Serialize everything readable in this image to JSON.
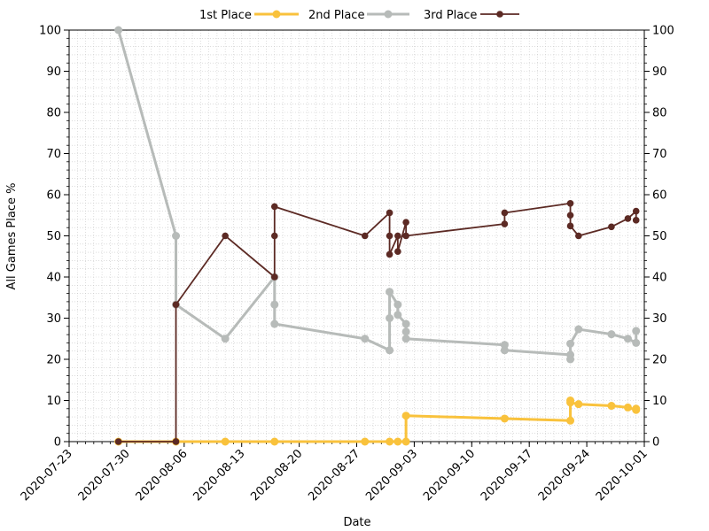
{
  "chart_data": {
    "type": "line",
    "title": "",
    "xlabel": "Date",
    "ylabel": "All Games Place %",
    "x_axis_kind": "date",
    "xlim": [
      "2020-07-23",
      "2020-10-01"
    ],
    "ylim": [
      0,
      100
    ],
    "xticks": [
      "2020-07-23",
      "2020-07-30",
      "2020-08-06",
      "2020-08-13",
      "2020-08-20",
      "2020-08-27",
      "2020-09-03",
      "2020-09-10",
      "2020-09-17",
      "2020-09-24",
      "2020-10-01"
    ],
    "yticks": [
      0,
      10,
      20,
      30,
      40,
      50,
      60,
      70,
      80,
      90,
      100
    ],
    "right_axis": true,
    "grid": "dotted",
    "legend_position": "top",
    "series": [
      {
        "name": "1st Place",
        "color": "#f9c23c",
        "stroke_width": 3,
        "marker_radius": 4.5,
        "points": [
          [
            "2020-07-29",
            0
          ],
          [
            "2020-08-05",
            0
          ],
          [
            "2020-08-11",
            0
          ],
          [
            "2020-08-17",
            0
          ],
          [
            "2020-08-28",
            0
          ],
          [
            "2020-08-31",
            0
          ],
          [
            "2020-09-01",
            0
          ],
          [
            "2020-09-02",
            0
          ],
          [
            "2020-09-02",
            6.3
          ],
          [
            "2020-09-14",
            5.6
          ],
          [
            "2020-09-22",
            5.1
          ],
          [
            "2020-09-22",
            10
          ],
          [
            "2020-09-22",
            9.5
          ],
          [
            "2020-09-23",
            9.1
          ],
          [
            "2020-09-27",
            8.7
          ],
          [
            "2020-09-29",
            8.3
          ],
          [
            "2020-09-30",
            7.7
          ],
          [
            "2020-09-30",
            8.0
          ]
        ]
      },
      {
        "name": "2nd Place",
        "color": "#b7bbb9",
        "stroke_width": 3,
        "marker_radius": 4.5,
        "points": [
          [
            "2020-07-29",
            100
          ],
          [
            "2020-08-05",
            50
          ],
          [
            "2020-08-05",
            33.3
          ],
          [
            "2020-08-11",
            25
          ],
          [
            "2020-08-17",
            40
          ],
          [
            "2020-08-17",
            33.3
          ],
          [
            "2020-08-17",
            28.6
          ],
          [
            "2020-08-28",
            25
          ],
          [
            "2020-08-31",
            22.2
          ],
          [
            "2020-08-31",
            30
          ],
          [
            "2020-08-31",
            36.4
          ],
          [
            "2020-09-01",
            33.3
          ],
          [
            "2020-09-01",
            30.8
          ],
          [
            "2020-09-02",
            28.6
          ],
          [
            "2020-09-02",
            26.7
          ],
          [
            "2020-09-02",
            25
          ],
          [
            "2020-09-14",
            23.5
          ],
          [
            "2020-09-14",
            22.2
          ],
          [
            "2020-09-22",
            21.1
          ],
          [
            "2020-09-22",
            20
          ],
          [
            "2020-09-22",
            23.8
          ],
          [
            "2020-09-23",
            27.3
          ],
          [
            "2020-09-27",
            26.1
          ],
          [
            "2020-09-29",
            25
          ],
          [
            "2020-09-30",
            24
          ],
          [
            "2020-09-30",
            26.9
          ]
        ]
      },
      {
        "name": "3rd Place",
        "color": "#5c2a24",
        "stroke_width": 1.8,
        "marker_radius": 3.8,
        "points": [
          [
            "2020-07-29",
            0
          ],
          [
            "2020-08-05",
            0
          ],
          [
            "2020-08-05",
            33.3
          ],
          [
            "2020-08-11",
            50
          ],
          [
            "2020-08-17",
            40
          ],
          [
            "2020-08-17",
            50
          ],
          [
            "2020-08-17",
            57.1
          ],
          [
            "2020-08-28",
            50
          ],
          [
            "2020-08-31",
            55.6
          ],
          [
            "2020-08-31",
            50
          ],
          [
            "2020-08-31",
            45.5
          ],
          [
            "2020-09-01",
            50
          ],
          [
            "2020-09-01",
            46.2
          ],
          [
            "2020-09-02",
            53.3
          ],
          [
            "2020-09-02",
            50
          ],
          [
            "2020-09-14",
            52.9
          ],
          [
            "2020-09-14",
            55.6
          ],
          [
            "2020-09-22",
            57.9
          ],
          [
            "2020-09-22",
            55
          ],
          [
            "2020-09-22",
            52.4
          ],
          [
            "2020-09-23",
            50
          ],
          [
            "2020-09-27",
            52.2
          ],
          [
            "2020-09-29",
            54.2
          ],
          [
            "2020-09-30",
            56
          ],
          [
            "2020-09-30",
            53.8
          ]
        ]
      }
    ]
  }
}
